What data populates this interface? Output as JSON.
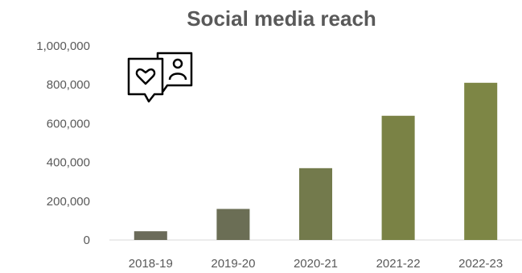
{
  "chart_data": {
    "type": "bar",
    "title": "Social media reach",
    "categories": [
      "2018-19",
      "2019-20",
      "2020-21",
      "2021-22",
      "2022-23"
    ],
    "values": [
      45000,
      160000,
      370000,
      640000,
      810000
    ],
    "ylim": [
      0,
      1000000
    ],
    "yticks": [
      "0",
      "200,000",
      "400,000",
      "600,000",
      "800,000",
      "1,000,000"
    ],
    "xlabel": "",
    "ylabel": "",
    "grid": false,
    "legend": "none",
    "colors": [
      "#6b6b5a",
      "#6b6e55",
      "#737a4c",
      "#7a8245",
      "#7d8645"
    ]
  },
  "icon": {
    "name": "social-media-chat-icon"
  }
}
